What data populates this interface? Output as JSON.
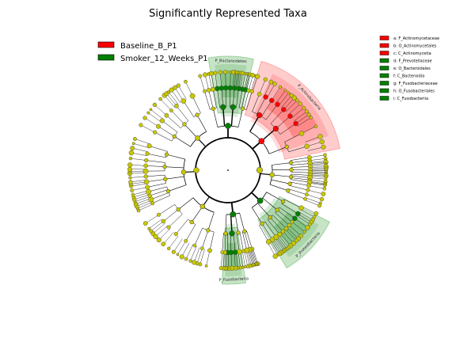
{
  "chart_data": {
    "type": "cladogram",
    "title": "Significantly Represented Taxa",
    "groups": [
      {
        "name": "Baseline_B_P1",
        "color": "#ff0000",
        "shade": "#ff9999"
      },
      {
        "name": "Smoker_12_Weeks_P1",
        "color": "#008000",
        "shade": "#8fc98f"
      }
    ],
    "highlighted_clades": [
      {
        "label": "P_Bacteroidetes",
        "group": "Smoker_12_Weeks_P1",
        "angle_start": 100,
        "angle_end": 77
      },
      {
        "label": "P_Actinobacteria",
        "group": "Baseline_B_P1",
        "angle_start": 73,
        "angle_end": 11
      },
      {
        "label": "P_Proteobacteria",
        "group": "Smoker_12_Weeks_P1",
        "angle_start": -27,
        "angle_end": -59
      },
      {
        "label": "P_Fusobacteria",
        "group": "Smoker_12_Weeks_P1",
        "angle_start": -81,
        "angle_end": -93
      }
    ],
    "sub_clade_letters": [
      "a",
      "b",
      "c",
      "d",
      "e",
      "f",
      "g",
      "h",
      "i"
    ],
    "key": [
      {
        "letter": "a",
        "taxon": "a: F_Actinomycetaceae",
        "group": "Baseline_B_P1"
      },
      {
        "letter": "b",
        "taxon": "b: O_Actinomycetales",
        "group": "Baseline_B_P1"
      },
      {
        "letter": "c",
        "taxon": "c: C_Actinomycetia",
        "group": "Baseline_B_P1"
      },
      {
        "letter": "d",
        "taxon": "d: F_Prevotellaceae",
        "group": "Smoker_12_Weeks_P1"
      },
      {
        "letter": "e",
        "taxon": "e: O_Bacteroidales",
        "group": "Smoker_12_Weeks_P1"
      },
      {
        "letter": "f",
        "taxon": "f: C_Bacteroidia",
        "group": "Smoker_12_Weeks_P1"
      },
      {
        "letter": "g",
        "taxon": "g: F_Fusobacteriaceae",
        "group": "Smoker_12_Weeks_P1"
      },
      {
        "letter": "h",
        "taxon": "h: O_Fusobacteriales",
        "group": "Smoker_12_Weeks_P1"
      },
      {
        "letter": "i",
        "taxon": "i: C_Fusobacteriia",
        "group": "Smoker_12_Weeks_P1"
      }
    ],
    "node_color_default": "#c8c800"
  }
}
